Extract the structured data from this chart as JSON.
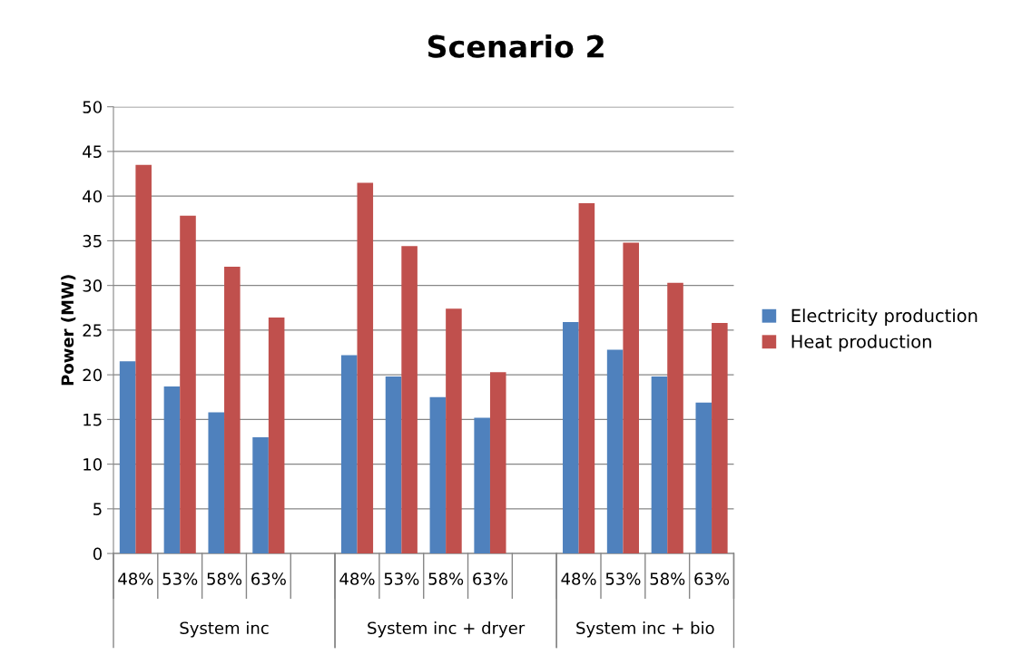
{
  "chart_data": {
    "type": "bar",
    "title": "Scenario 2",
    "ylabel": "Power (MW)",
    "categories": [
      "48%",
      "53%",
      "58%",
      "63%",
      null,
      "48%",
      "53%",
      "58%",
      "63%",
      null,
      "48%",
      "53%",
      "58%",
      "63%"
    ],
    "series": [
      {
        "name": "Electricity production",
        "color": "#4f81bd",
        "values": [
          21.5,
          18.7,
          15.8,
          13.0,
          null,
          22.2,
          19.8,
          17.5,
          15.2,
          null,
          25.9,
          22.8,
          19.8,
          16.9
        ]
      },
      {
        "name": "Heat production",
        "color": "#c0504d",
        "values": [
          43.5,
          37.8,
          32.1,
          26.4,
          null,
          41.5,
          34.4,
          27.4,
          20.3,
          null,
          39.2,
          34.8,
          30.3,
          25.8
        ]
      }
    ],
    "annotations": [
      "System inc",
      "System inc + dryer",
      "System inc + bio"
    ],
    "ylim": [
      0,
      50
    ],
    "yticks": [
      0,
      5,
      10,
      15,
      20,
      25,
      30,
      35,
      40,
      45,
      50
    ],
    "grid": "y",
    "legend": "right"
  }
}
